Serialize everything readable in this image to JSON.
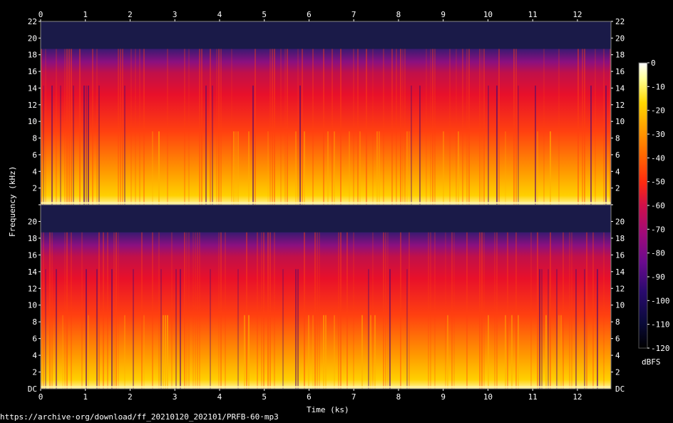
{
  "chart_data": {
    "type": "heatmap",
    "xlabel": "Time (ks)",
    "ylabel": "Frequency (kHz)",
    "xlim": [
      0,
      12.75
    ],
    "x_ticks": [
      "0",
      "1",
      "2",
      "3",
      "4",
      "5",
      "6",
      "7",
      "8",
      "9",
      "10",
      "11",
      "12"
    ],
    "ylim_khz": [
      0,
      22
    ],
    "y_ticks": [
      "22",
      "20",
      "18",
      "16",
      "14",
      "12",
      "10",
      "8",
      "6",
      "4",
      "2"
    ],
    "y_bottom_label": "DC",
    "channels": [
      "top",
      "bottom"
    ],
    "colorbar": {
      "label": "dBFS",
      "range": [
        -120,
        0
      ],
      "ticks": [
        "0",
        "-10",
        "-20",
        "-30",
        "-40",
        "-50",
        "-60",
        "-70",
        "-80",
        "-90",
        "-100",
        "-110",
        "-120"
      ],
      "colors": [
        "#000000",
        "#0a0a3a",
        "#2a0a6e",
        "#6a0a8e",
        "#a00a7a",
        "#d0104a",
        "#ff2a10",
        "#ff6a00",
        "#ffa500",
        "#ffd700",
        "#ffff90",
        "#ffffff"
      ]
    }
  },
  "footer": {
    "url": "https://archive·org/download/ff_20210120_202101/PRFB-60·mp3"
  }
}
